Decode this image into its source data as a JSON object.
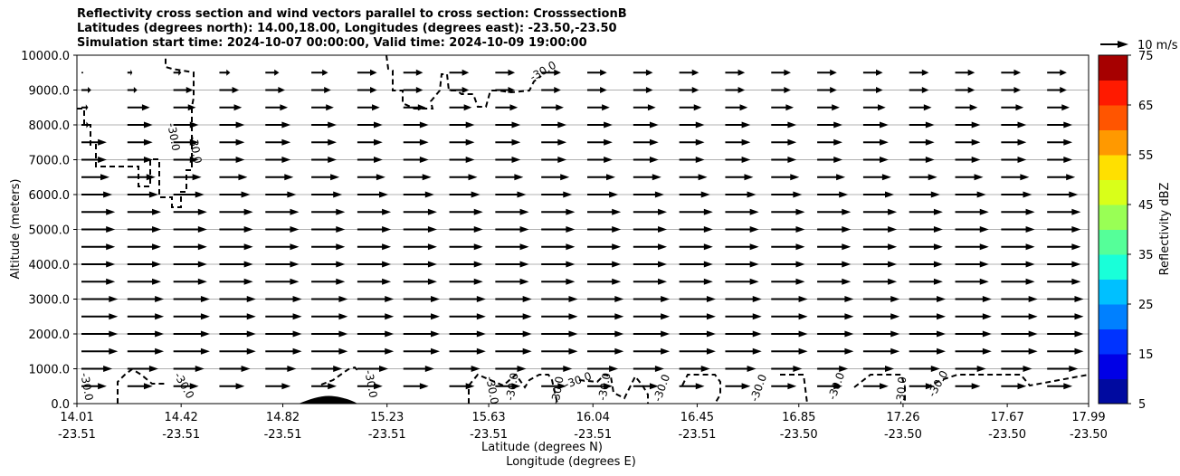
{
  "chart_data": {
    "type": "cross-section (quiver + contour)",
    "title_lines": [
      "Reflectivity cross section and wind vectors parallel to cross section: CrosssectionB",
      "Latitudes (degrees north): 14.00,18.00, Longitudes (degrees east): -23.50,-23.50",
      "Simulation start time: 2024-10-07 00:00:00, Valid time: 2024-10-09 19:00:00"
    ],
    "ylabel": "Altitude (meters)",
    "xlabel_lat": "Latitude (degrees N)",
    "xlabel_lon": "Longitude (degrees E)",
    "ylim": [
      0,
      10000
    ],
    "y_ticks": [
      "0.0",
      "1000.0",
      "2000.0",
      "3000.0",
      "4000.0",
      "5000.0",
      "6000.0",
      "7000.0",
      "8000.0",
      "9000.0",
      "10000.0"
    ],
    "y_tick_values": [
      0,
      1000,
      2000,
      3000,
      4000,
      5000,
      6000,
      7000,
      8000,
      9000,
      10000
    ],
    "x_ticks_lat": [
      "14.01",
      "14.42",
      "14.82",
      "15.23",
      "15.63",
      "16.04",
      "16.45",
      "16.85",
      "17.26",
      "17.67",
      "17.99"
    ],
    "x_ticks_lon": [
      "-23.51",
      "-23.51",
      "-23.51",
      "-23.51",
      "-23.51",
      "-23.51",
      "-23.51",
      "-23.50",
      "-23.50",
      "-23.50",
      "-23.50"
    ],
    "x_tick_values": [
      14.01,
      14.42,
      14.82,
      15.23,
      15.63,
      16.04,
      16.45,
      16.85,
      17.26,
      17.67,
      17.99
    ],
    "xlim": [
      14.01,
      17.99
    ],
    "grid": "horizontal",
    "quiver_key": {
      "label": "10 m/s"
    },
    "wind_levels": [
      500,
      1000,
      1500,
      2000,
      2500,
      3000,
      3500,
      4000,
      4500,
      5000,
      5500,
      6000,
      6500,
      7000,
      7500,
      8000,
      8500,
      9000,
      9500
    ],
    "wind_speed_by_level_ms": [
      9,
      11,
      13,
      13,
      13,
      13,
      12,
      12,
      12,
      12,
      12,
      11,
      10,
      9,
      9,
      9,
      8,
      7,
      7
    ],
    "contour": {
      "level_label": "-30.0",
      "style": "dashed"
    },
    "colorbar": {
      "label": "Reflectivity dBZ",
      "tick_labels": [
        "5",
        "15",
        "25",
        "35",
        "45",
        "55",
        "65",
        "75"
      ],
      "range": [
        5,
        75
      ],
      "bounds": [
        5,
        10,
        15,
        20,
        25,
        30,
        35,
        40,
        45,
        50,
        55,
        60,
        65,
        70,
        75
      ],
      "colors": [
        "#000aa0",
        "#0000e6",
        "#0033ff",
        "#0080ff",
        "#00c0ff",
        "#19ffd9",
        "#55ff99",
        "#99ff55",
        "#d9ff19",
        "#ffe000",
        "#ff9900",
        "#ff5500",
        "#ff1a00",
        "#a60000"
      ]
    }
  }
}
